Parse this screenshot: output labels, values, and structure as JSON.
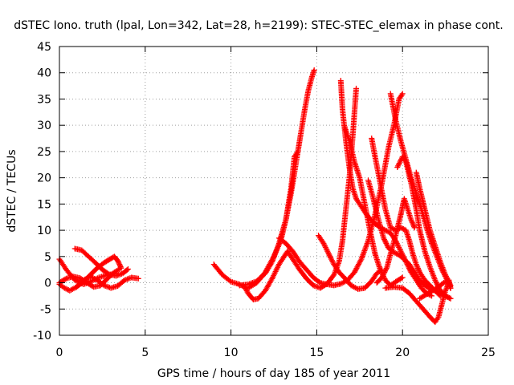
{
  "chart_data": {
    "type": "scatter",
    "title": "dSTEC Iono. truth (lpal, Lon=342, Lat=28, h=2199): STEC-STEC_elemax in phase cont.",
    "xlabel": "GPS time / hours of day 185 of year 2011",
    "ylabel": "dSTEC  / TECUs",
    "xlim": [
      0,
      25
    ],
    "ylim": [
      -10,
      45
    ],
    "xticks": [
      0,
      5,
      10,
      15,
      20,
      25
    ],
    "yticks": [
      -10,
      -5,
      0,
      5,
      10,
      15,
      20,
      25,
      30,
      35,
      40,
      45
    ],
    "grid": true,
    "marker": "plus",
    "color": "#ff0000",
    "series": [
      {
        "points": [
          [
            0.0,
            4.5
          ],
          [
            0.4,
            2.5
          ],
          [
            0.9,
            0.5
          ],
          [
            1.4,
            -0.3
          ],
          [
            1.8,
            0.2
          ],
          [
            2.3,
            1.0
          ],
          [
            2.8,
            1.5
          ],
          [
            3.3,
            1.8
          ]
        ]
      },
      {
        "points": [
          [
            0.0,
            -0.3
          ],
          [
            0.3,
            -1.0
          ],
          [
            0.6,
            -1.5
          ],
          [
            1.0,
            -0.8
          ],
          [
            1.4,
            0.5
          ],
          [
            1.8,
            1.2
          ],
          [
            2.2,
            0.5
          ],
          [
            2.6,
            -0.5
          ],
          [
            3.0,
            -1.0
          ],
          [
            3.4,
            -0.6
          ],
          [
            3.8,
            0.5
          ],
          [
            4.2,
            1.0
          ],
          [
            4.6,
            0.8
          ]
        ]
      },
      {
        "points": [
          [
            0.0,
            0.0
          ],
          [
            0.4,
            0.8
          ],
          [
            0.8,
            1.2
          ],
          [
            1.2,
            0.9
          ],
          [
            1.6,
            0.0
          ],
          [
            2.0,
            -0.8
          ],
          [
            2.4,
            -0.5
          ],
          [
            2.8,
            0.8
          ],
          [
            3.2,
            2.0
          ],
          [
            3.5,
            2.6
          ]
        ]
      },
      {
        "points": [
          [
            0.9,
            6.5
          ],
          [
            1.3,
            6.2
          ],
          [
            1.7,
            5.0
          ],
          [
            2.1,
            3.8
          ],
          [
            2.5,
            2.5
          ],
          [
            2.9,
            1.6
          ],
          [
            3.3,
            1.3
          ],
          [
            3.7,
            1.8
          ],
          [
            4.0,
            2.6
          ]
        ]
      },
      {
        "points": [
          [
            1.0,
            -0.8
          ],
          [
            1.4,
            0.2
          ],
          [
            1.8,
            1.5
          ],
          [
            2.2,
            2.8
          ],
          [
            2.6,
            3.8
          ],
          [
            3.0,
            4.6
          ],
          [
            3.2,
            5.0
          ],
          [
            3.4,
            4.2
          ],
          [
            3.6,
            2.8
          ]
        ]
      },
      {
        "points": [
          [
            9.0,
            3.5
          ],
          [
            9.5,
            1.5
          ],
          [
            10.0,
            0.2
          ],
          [
            10.5,
            -0.3
          ],
          [
            10.8,
            -0.8
          ],
          [
            11.0,
            -2.0
          ],
          [
            11.3,
            -3.2
          ],
          [
            11.6,
            -3.0
          ],
          [
            12.0,
            -1.5
          ],
          [
            12.4,
            0.8
          ],
          [
            12.8,
            3.5
          ],
          [
            13.1,
            5.0
          ],
          [
            13.3,
            6.0
          ],
          [
            13.6,
            4.5
          ],
          [
            14.0,
            2.5
          ],
          [
            14.4,
            0.8
          ],
          [
            14.8,
            -0.5
          ],
          [
            15.2,
            -1.0
          ],
          [
            15.6,
            -0.2
          ],
          [
            16.0,
            1.5
          ],
          [
            16.3,
            4.0
          ],
          [
            16.5,
            8.0
          ],
          [
            16.7,
            14.0
          ],
          [
            16.9,
            20.0
          ],
          [
            17.1,
            28.0
          ],
          [
            17.3,
            37.0
          ]
        ]
      },
      {
        "points": [
          [
            10.5,
            -0.5
          ],
          [
            11.0,
            -0.3
          ],
          [
            11.5,
            0.3
          ],
          [
            12.0,
            1.8
          ],
          [
            12.4,
            4.0
          ],
          [
            12.8,
            7.5
          ],
          [
            13.2,
            12.0
          ],
          [
            13.5,
            17.0
          ],
          [
            13.7,
            21.0
          ],
          [
            13.9,
            25.0
          ],
          [
            14.1,
            29.0
          ],
          [
            14.3,
            33.0
          ],
          [
            14.5,
            36.5
          ],
          [
            14.7,
            39.0
          ],
          [
            14.85,
            40.5
          ]
        ]
      },
      {
        "points": [
          [
            11.0,
            -1.0
          ],
          [
            11.5,
            0.0
          ],
          [
            12.0,
            2.0
          ],
          [
            12.5,
            5.0
          ],
          [
            12.9,
            8.0
          ],
          [
            13.2,
            12.0
          ],
          [
            13.5,
            18.0
          ],
          [
            13.7,
            24.0
          ],
          [
            13.9,
            25.0
          ]
        ]
      },
      {
        "points": [
          [
            12.8,
            8.5
          ],
          [
            13.2,
            7.5
          ],
          [
            13.6,
            6.0
          ],
          [
            14.0,
            4.0
          ],
          [
            14.4,
            2.5
          ],
          [
            14.8,
            1.0
          ],
          [
            15.2,
            0.0
          ],
          [
            15.6,
            -0.3
          ],
          [
            16.0,
            -0.5
          ],
          [
            16.4,
            -0.2
          ],
          [
            16.8,
            0.5
          ],
          [
            17.2,
            2.0
          ],
          [
            17.6,
            4.5
          ],
          [
            18.0,
            8.0
          ],
          [
            18.4,
            13.0
          ],
          [
            18.8,
            19.0
          ],
          [
            19.2,
            26.0
          ],
          [
            19.5,
            30.0
          ],
          [
            19.8,
            35.0
          ],
          [
            20.0,
            36.0
          ]
        ]
      },
      {
        "points": [
          [
            15.1,
            9.0
          ],
          [
            15.4,
            7.5
          ],
          [
            15.7,
            5.5
          ],
          [
            16.0,
            3.5
          ],
          [
            16.3,
            2.0
          ],
          [
            16.6,
            1.0
          ],
          [
            17.0,
            -0.5
          ],
          [
            17.4,
            -1.2
          ],
          [
            17.8,
            -1.0
          ],
          [
            18.2,
            0.3
          ],
          [
            18.5,
            1.8
          ],
          [
            18.8,
            2.5
          ]
        ]
      },
      {
        "points": [
          [
            16.4,
            38.5
          ],
          [
            16.5,
            33.0
          ],
          [
            16.7,
            27.0
          ],
          [
            16.9,
            22.0
          ],
          [
            17.1,
            18.0
          ],
          [
            17.3,
            16.0
          ],
          [
            17.6,
            14.5
          ],
          [
            17.9,
            13.0
          ],
          [
            18.3,
            11.5
          ],
          [
            18.7,
            10.5
          ],
          [
            19.0,
            10.0
          ],
          [
            19.3,
            9.5
          ],
          [
            19.6,
            8.0
          ],
          [
            19.9,
            6.0
          ],
          [
            20.2,
            4.0
          ],
          [
            20.5,
            2.0
          ],
          [
            20.8,
            0.5
          ],
          [
            21.1,
            -1.0
          ],
          [
            21.4,
            -2.0
          ],
          [
            21.7,
            -2.5
          ]
        ]
      },
      {
        "points": [
          [
            16.6,
            30.0
          ],
          [
            16.9,
            27.0
          ],
          [
            17.2,
            23.0
          ],
          [
            17.5,
            20.0
          ],
          [
            17.8,
            15.0
          ],
          [
            18.1,
            10.0
          ],
          [
            18.4,
            5.5
          ],
          [
            18.7,
            2.5
          ],
          [
            19.0,
            0.5
          ],
          [
            19.3,
            -0.5
          ],
          [
            19.6,
            0.2
          ],
          [
            20.0,
            1.0
          ]
        ]
      },
      {
        "points": [
          [
            18.0,
            19.5
          ],
          [
            18.3,
            16.0
          ],
          [
            18.6,
            12.0
          ],
          [
            18.9,
            8.5
          ],
          [
            19.2,
            6.5
          ],
          [
            19.5,
            5.8
          ],
          [
            19.8,
            5.3
          ],
          [
            20.1,
            4.5
          ],
          [
            20.4,
            3.5
          ],
          [
            20.7,
            2.0
          ],
          [
            21.0,
            0.5
          ],
          [
            21.3,
            -0.5
          ],
          [
            21.6,
            -1.2
          ],
          [
            21.9,
            -1.5
          ],
          [
            22.2,
            -2.0
          ],
          [
            22.5,
            -2.5
          ],
          [
            22.8,
            -3.0
          ]
        ]
      },
      {
        "points": [
          [
            18.5,
            0.0
          ],
          [
            18.8,
            1.0
          ],
          [
            19.1,
            3.0
          ],
          [
            19.3,
            5.5
          ],
          [
            19.6,
            9.0
          ],
          [
            19.9,
            13.0
          ],
          [
            20.1,
            16.0
          ],
          [
            20.3,
            14.0
          ],
          [
            20.5,
            12.0
          ],
          [
            20.7,
            10.5
          ]
        ]
      },
      {
        "points": [
          [
            18.2,
            27.5
          ],
          [
            18.4,
            24.0
          ],
          [
            18.7,
            19.0
          ],
          [
            19.0,
            14.0
          ],
          [
            19.3,
            10.5
          ],
          [
            19.6,
            10.0
          ],
          [
            19.9,
            10.5
          ],
          [
            20.2,
            10.0
          ],
          [
            20.4,
            8.0
          ],
          [
            20.6,
            5.5
          ],
          [
            20.8,
            3.5
          ],
          [
            21.0,
            2.0
          ],
          [
            21.3,
            0.5
          ],
          [
            21.6,
            -0.5
          ],
          [
            21.9,
            -1.5
          ],
          [
            22.2,
            -2.5
          ]
        ]
      },
      {
        "points": [
          [
            19.3,
            36.0
          ],
          [
            19.6,
            31.0
          ],
          [
            19.9,
            27.0
          ],
          [
            20.2,
            23.5
          ],
          [
            20.5,
            20.0
          ],
          [
            20.8,
            17.0
          ],
          [
            21.1,
            14.0
          ],
          [
            21.4,
            10.5
          ],
          [
            21.7,
            7.5
          ],
          [
            22.0,
            5.0
          ],
          [
            22.3,
            2.5
          ],
          [
            22.6,
            0.5
          ],
          [
            22.8,
            -1.0
          ]
        ]
      },
      {
        "points": [
          [
            20.8,
            21.0
          ],
          [
            21.0,
            18.0
          ],
          [
            21.3,
            14.0
          ],
          [
            21.6,
            10.0
          ],
          [
            21.9,
            7.0
          ],
          [
            22.2,
            4.0
          ],
          [
            22.5,
            1.5
          ],
          [
            22.8,
            -0.5
          ]
        ]
      },
      {
        "points": [
          [
            19.7,
            22.0
          ],
          [
            20.0,
            24.0
          ],
          [
            20.2,
            23.0
          ],
          [
            20.5,
            19.0
          ],
          [
            20.8,
            14.0
          ],
          [
            21.0,
            10.0
          ],
          [
            21.3,
            6.0
          ],
          [
            21.6,
            3.0
          ],
          [
            21.9,
            0.5
          ],
          [
            22.2,
            -1.5
          ],
          [
            22.5,
            -2.5
          ],
          [
            22.8,
            -3.0
          ]
        ]
      },
      {
        "points": [
          [
            19.0,
            -1.0
          ],
          [
            19.5,
            -0.8
          ],
          [
            20.0,
            -1.0
          ],
          [
            20.4,
            -2.0
          ],
          [
            20.8,
            -3.5
          ],
          [
            21.2,
            -5.0
          ],
          [
            21.6,
            -6.5
          ],
          [
            21.9,
            -7.5
          ],
          [
            22.1,
            -6.5
          ],
          [
            22.3,
            -4.0
          ],
          [
            22.5,
            -1.5
          ],
          [
            22.7,
            0.0
          ],
          [
            22.8,
            -1.0
          ]
        ]
      },
      {
        "points": [
          [
            21.0,
            -3.0
          ],
          [
            21.5,
            -2.0
          ],
          [
            22.0,
            -1.0
          ],
          [
            22.4,
            0.0
          ],
          [
            22.7,
            0.5
          ],
          [
            22.8,
            -1.0
          ]
        ]
      }
    ]
  }
}
